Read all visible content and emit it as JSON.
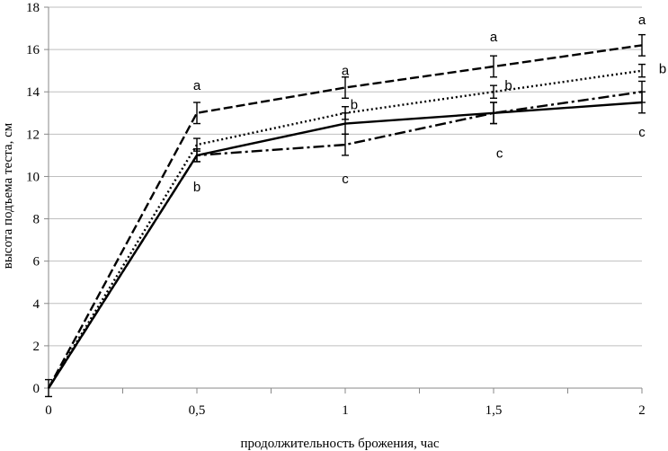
{
  "chart_data": {
    "type": "line",
    "title": "",
    "xlabel": "продолжительность брожения, час",
    "ylabel": "высота подъема теста, см",
    "x": [
      0,
      0.5,
      1,
      1.5,
      2
    ],
    "x_tick_labels": [
      "0",
      "0,5",
      "1",
      "1,5",
      "2"
    ],
    "xlim": [
      0,
      2
    ],
    "ylim": [
      0,
      18
    ],
    "y_ticks": [
      0,
      2,
      4,
      6,
      8,
      10,
      12,
      14,
      16,
      18
    ],
    "y_tick_labels": [
      "0",
      "2",
      "4",
      "6",
      "8",
      "10",
      "12",
      "14",
      "16",
      "18"
    ],
    "grid": "horizontal",
    "legend": "none",
    "series": [
      {
        "line_style": "dashed",
        "color": "#000000",
        "values": [
          0,
          13.0,
          14.2,
          15.2,
          16.2
        ],
        "error": [
          0.4,
          0.5,
          0.5,
          0.5,
          0.5
        ]
      },
      {
        "line_style": "dotted",
        "color": "#000000",
        "values": [
          0,
          11.5,
          13.0,
          14.0,
          15.0
        ],
        "error": [
          0,
          0.3,
          0.3,
          0.3,
          0.3
        ]
      },
      {
        "line_style": "solid",
        "color": "#000000",
        "values": [
          0,
          11.0,
          12.5,
          13.0,
          13.5
        ],
        "error": [
          0,
          0.3,
          0.5,
          0.5,
          0.5
        ]
      },
      {
        "line_style": "dash-dot",
        "color": "#000000",
        "values": [
          0,
          11.0,
          11.5,
          13.0,
          14.0
        ],
        "error": [
          0,
          0.3,
          0.5,
          0.5,
          0.5
        ]
      }
    ],
    "annotations": [
      {
        "text": "a",
        "x": 0.5,
        "y": 14.3
      },
      {
        "text": "b",
        "x": 0.5,
        "y": 9.5
      },
      {
        "text": "a",
        "x": 1,
        "y": 15.0
      },
      {
        "text": "b",
        "x": 1.03,
        "y": 13.4
      },
      {
        "text": "c",
        "x": 1,
        "y": 9.9
      },
      {
        "text": "a",
        "x": 1.5,
        "y": 16.6
      },
      {
        "text": "b",
        "x": 1.55,
        "y": 14.3
      },
      {
        "text": "c",
        "x": 1.52,
        "y": 11.1
      },
      {
        "text": "a",
        "x": 2,
        "y": 17.4
      },
      {
        "text": "b",
        "x": 2.07,
        "y": 15.1
      },
      {
        "text": "c",
        "x": 2,
        "y": 12.1
      }
    ]
  }
}
